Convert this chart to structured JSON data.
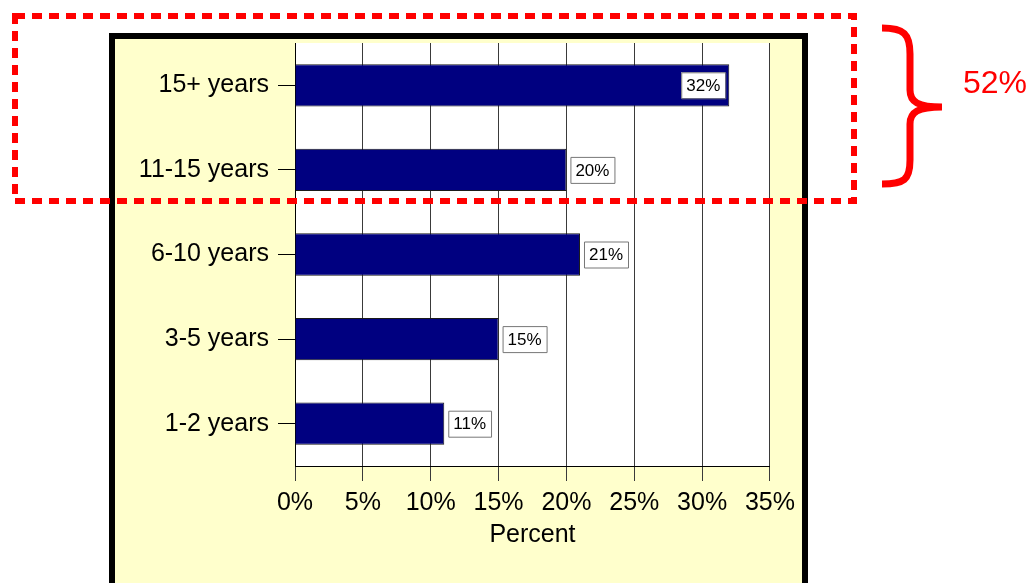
{
  "chart_data": {
    "type": "bar",
    "orientation": "horizontal",
    "categories": [
      "15+ years",
      "11-15 years",
      "6-10 years",
      "3-5 years",
      "1-2 years"
    ],
    "values": [
      32,
      20,
      21,
      15,
      11
    ],
    "color": "#000080",
    "value_labels": [
      "32%",
      "20%",
      "21%",
      "15%",
      "11%"
    ],
    "xlabel": "Percent",
    "xlim": [
      0,
      35
    ],
    "xticks": [
      {
        "value": 0,
        "label": "0%"
      },
      {
        "value": 5,
        "label": "5%"
      },
      {
        "value": 10,
        "label": "10%"
      },
      {
        "value": 15,
        "label": "15%"
      },
      {
        "value": 20,
        "label": "20%"
      },
      {
        "value": 25,
        "label": "25%"
      },
      {
        "value": 30,
        "label": "30%"
      },
      {
        "value": 35,
        "label": "35%"
      }
    ],
    "grid": "x",
    "annotations": [
      "52%"
    ]
  }
}
